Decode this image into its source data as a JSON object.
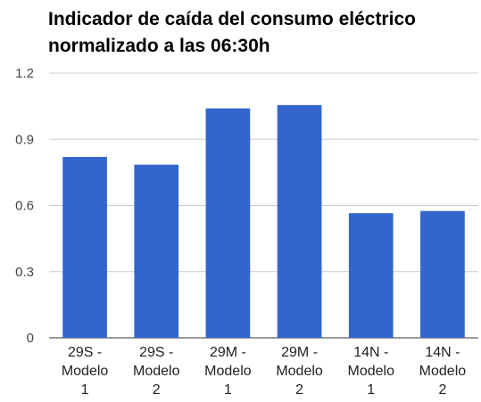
{
  "chart_data": {
    "type": "bar",
    "title": [
      "Indicador de caída del consumo eléctrico",
      "normalizado a las 06:30h"
    ],
    "categories": [
      [
        "29S -",
        "Modelo",
        "1"
      ],
      [
        "29S -",
        "Modelo",
        "2"
      ],
      [
        "29M -",
        "Modelo",
        "1"
      ],
      [
        "29M -",
        "Modelo",
        "2"
      ],
      [
        "14N -",
        "Modelo",
        "1"
      ],
      [
        "14N -",
        "Modelo",
        "2"
      ]
    ],
    "values": [
      0.82,
      0.785,
      1.04,
      1.055,
      0.565,
      0.575
    ],
    "ylim": [
      0,
      1.2
    ],
    "yticks": [
      "0",
      "0.3",
      "0.6",
      "0.9",
      "1.2"
    ],
    "bar_color": "#3366cc",
    "grid": true,
    "legend": "none"
  }
}
